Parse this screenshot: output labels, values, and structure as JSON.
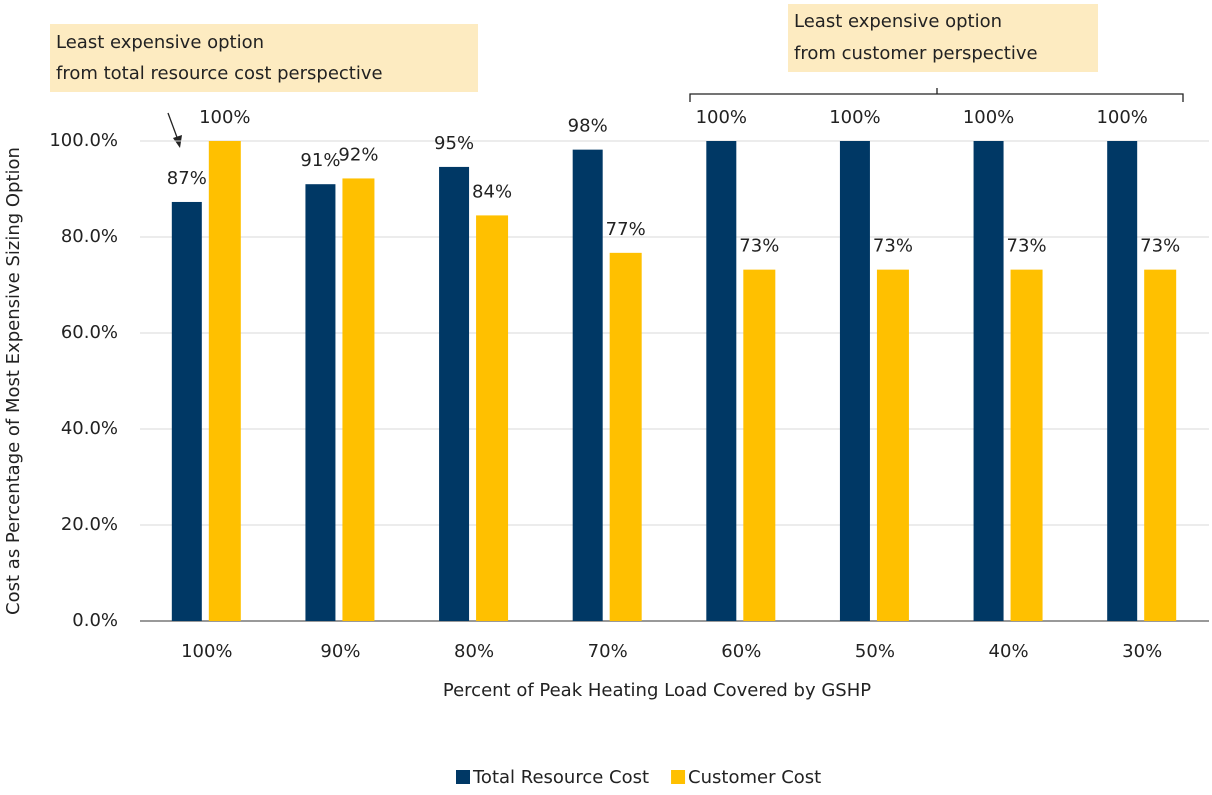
{
  "chart_data": {
    "type": "bar",
    "categories": [
      "100%",
      "90%",
      "80%",
      "70%",
      "60%",
      "50%",
      "40%",
      "30%"
    ],
    "series": [
      {
        "name": "Total Resource Cost",
        "color": "#003865",
        "values": [
          87.3,
          91,
          94.6,
          98.2,
          100,
          100,
          100,
          100
        ],
        "value_labels": [
          "87%",
          "91%",
          "95%",
          "98%",
          "100%",
          "100%",
          "100%",
          "100%"
        ]
      },
      {
        "name": "Customer Cost",
        "color": "#FFC000",
        "values": [
          100,
          92.2,
          84.5,
          76.7,
          73.2,
          73.2,
          73.2,
          73.2
        ],
        "value_labels": [
          "100%",
          "92%",
          "84%",
          "77%",
          "73%",
          "73%",
          "73%",
          "73%"
        ]
      }
    ],
    "ylim": [
      0,
      100
    ],
    "yticks": [
      {
        "value": 0,
        "label": "0.0%"
      },
      {
        "value": 20,
        "label": "20.0%"
      },
      {
        "value": 40,
        "label": "40.0%"
      },
      {
        "value": 60,
        "label": "60.0%"
      },
      {
        "value": 80,
        "label": "80.0%"
      },
      {
        "value": 100,
        "label": "100.0%"
      }
    ],
    "grid": true,
    "x_label": "Percent of Peak Heating Load Covered by GSHP",
    "y_label": "Cost as Percentage of Most Expensive Sizing Option",
    "legend": "bottom",
    "annotations": [
      {
        "lines": [
          "Least expensive option",
          "from total resource cost perspective"
        ]
      },
      {
        "lines": [
          "Least expensive option",
          "from customer perspective"
        ]
      }
    ]
  }
}
